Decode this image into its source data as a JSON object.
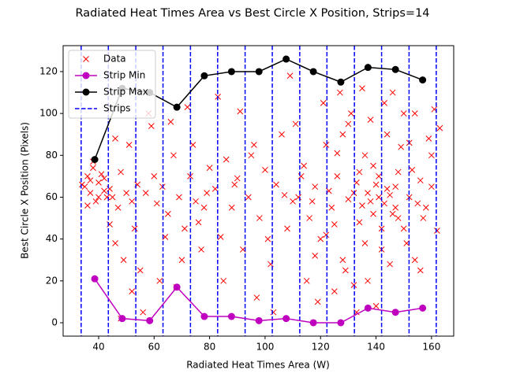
{
  "chart_data": {
    "type": "scatter",
    "title": "Radiated Heat Times Area vs Best Circle X Position, Strips=14",
    "x_label": "Radiated Heat Times Area (W)",
    "y_label": "Best Circle X Position (Pixels)",
    "xlim": [
      27.2,
      168
    ],
    "ylim": [
      -6.4,
      132.4
    ],
    "xticks": [
      40,
      60,
      80,
      100,
      120,
      140,
      160
    ],
    "yticks": [
      0,
      20,
      40,
      60,
      80,
      100,
      120
    ],
    "legend": "upper left",
    "series": [
      {
        "name": "Data",
        "color": "#ff0000",
        "style": "markers",
        "x": [
          35,
          36,
          37,
          38,
          39,
          40,
          41,
          42,
          43,
          36,
          34,
          38,
          40,
          42,
          44,
          37,
          45,
          47,
          48,
          50,
          52,
          54,
          46,
          49,
          51,
          53,
          55,
          57,
          59,
          60,
          48,
          56,
          58,
          46,
          52,
          44,
          61,
          63,
          65,
          67,
          69,
          71,
          73,
          75,
          77,
          79,
          62,
          66,
          70,
          74,
          78,
          64,
          68,
          72,
          76,
          80,
          82,
          84,
          86,
          88,
          90,
          92,
          94,
          96,
          98,
          100,
          102,
          104,
          106,
          108,
          110,
          85,
          91,
          97,
          103,
          109,
          83,
          95,
          101,
          107,
          89,
          112,
          114,
          116,
          118,
          120,
          122,
          124,
          126,
          128,
          130,
          132,
          134,
          136,
          138,
          140,
          142,
          144,
          146,
          148,
          150,
          152,
          154,
          156,
          158,
          160,
          162,
          163,
          115,
          119,
          121,
          125,
          127,
          129,
          131,
          133,
          135,
          137,
          139,
          141,
          143,
          145,
          147,
          149,
          151,
          153,
          155,
          157,
          159,
          117,
          123,
          125,
          133,
          135,
          137,
          139,
          141,
          143,
          145,
          147,
          113,
          111,
          128,
          132,
          140,
          146,
          150,
          154,
          161,
          118,
          122,
          126,
          130,
          134,
          136,
          138,
          142,
          144,
          148,
          152,
          156,
          160
        ],
        "values": [
          65,
          70,
          62,
          74,
          58,
          67,
          71,
          63,
          60,
          56,
          66,
          77,
          60,
          69,
          64,
          68,
          60,
          55,
          72,
          62,
          58,
          66,
          38,
          30,
          85,
          45,
          25,
          62,
          94,
          70,
          2,
          5,
          100,
          88,
          15,
          47,
          57,
          65,
          52,
          80,
          60,
          45,
          70,
          58,
          35,
          62,
          20,
          96,
          30,
          85,
          55,
          41,
          17,
          103,
          48,
          74,
          64,
          41,
          78,
          55,
          69,
          35,
          60,
          85,
          50,
          73,
          28,
          66,
          90,
          45,
          58,
          20,
          101,
          12,
          5,
          118,
          108,
          80,
          40,
          61,
          66,
          60,
          75,
          50,
          65,
          40,
          85,
          55,
          70,
          30,
          95,
          62,
          48,
          80,
          58,
          66,
          35,
          90,
          52,
          72,
          45,
          60,
          100,
          68,
          55,
          80,
          44,
          93,
          20,
          10,
          105,
          15,
          110,
          25,
          100,
          5,
          112,
          20,
          75,
          60,
          105,
          28,
          65,
          84,
          38,
          73,
          57,
          50,
          88,
          58,
          63,
          47,
          67,
          56,
          62,
          52,
          70,
          57,
          61,
          55,
          70,
          95,
          90,
          18,
          8,
          110,
          100,
          30,
          102,
          32,
          42,
          81,
          59,
          72,
          38,
          97,
          45,
          64,
          50,
          86,
          25,
          65
        ]
      },
      {
        "name": "Strip Min",
        "color": "#bf00bf",
        "style": "line",
        "x": [
          38.6,
          48.5,
          58.4,
          68.2,
          78.1,
          87.9,
          97.8,
          107.6,
          117.4,
          127.3,
          137.1,
          147.0,
          156.8
        ],
        "values": [
          21,
          2,
          1,
          17,
          3,
          3,
          1,
          2,
          0,
          0,
          7,
          5,
          7
        ]
      },
      {
        "name": "Strip Max",
        "color": "#000000",
        "style": "line",
        "x": [
          38.6,
          48.5,
          58.4,
          68.2,
          78.1,
          87.9,
          97.8,
          107.6,
          117.4,
          127.3,
          137.1,
          147.0,
          156.8
        ],
        "values": [
          78,
          112,
          110,
          103,
          118,
          120,
          120,
          126,
          120,
          115,
          122,
          121,
          116
        ]
      }
    ],
    "strips": {
      "name": "Strips",
      "color": "#0000ff",
      "x": [
        33.7,
        43.5,
        53.4,
        63.2,
        73.1,
        82.9,
        92.8,
        102.6,
        112.5,
        122.3,
        132.2,
        142.0,
        151.9,
        161.7
      ]
    }
  }
}
